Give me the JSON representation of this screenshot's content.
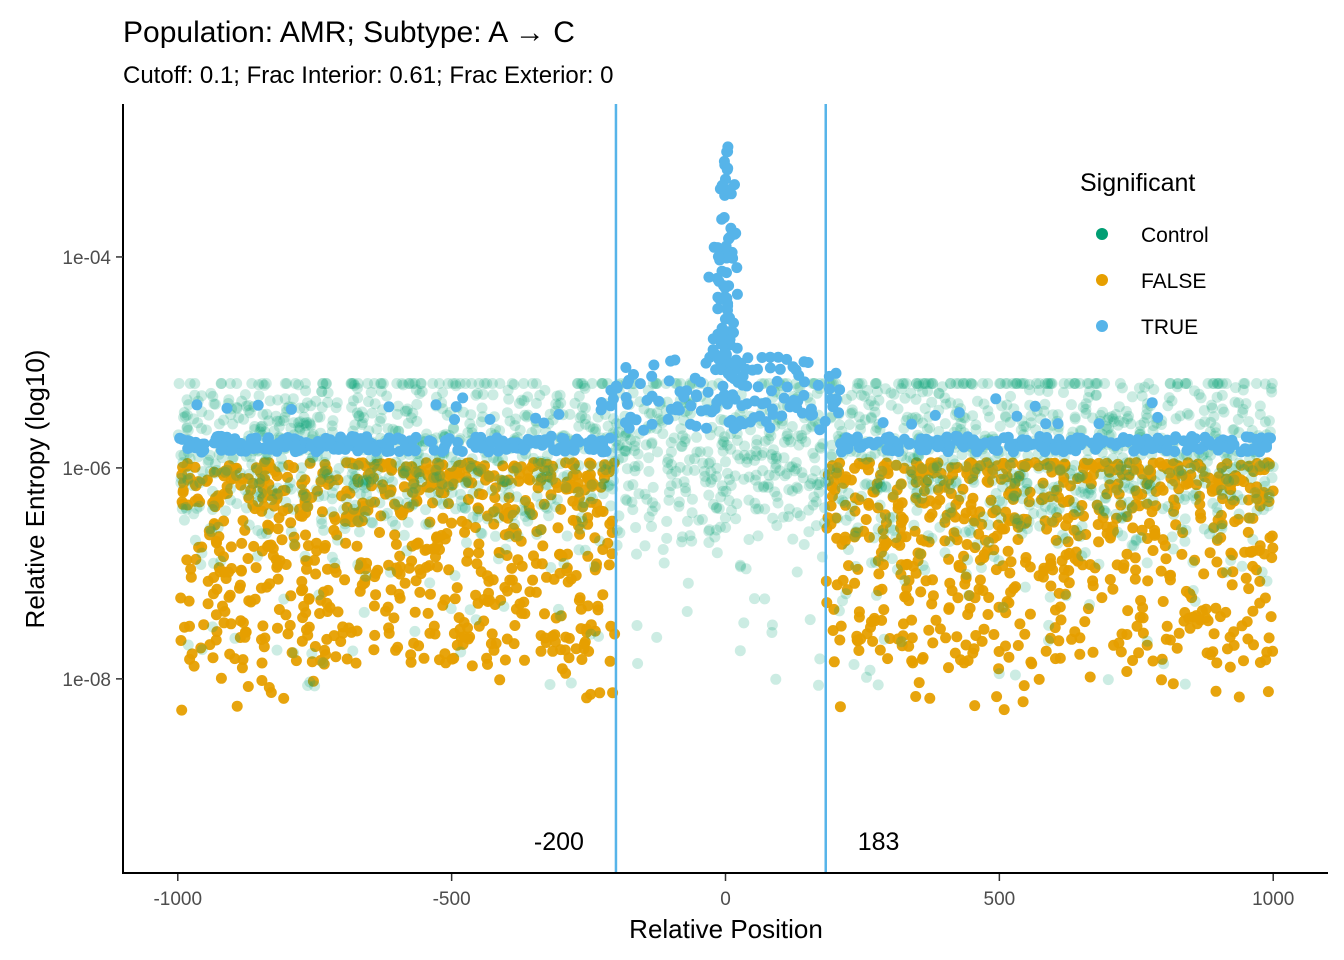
{
  "chart_data": {
    "type": "scatter",
    "title": "Population: AMR; Subtype: A → C",
    "subtitle": "Cutoff: 0.1; Frac Interior: 0.61; Frac Exterior: 0",
    "xlabel": "Relative Position",
    "ylabel": "Relative Entropy (log10)",
    "xlim": [
      -1100,
      1100
    ],
    "ylim_log10": [
      -9.85,
      -2.55
    ],
    "y_scale": "log10",
    "x_ticks": [
      -1000,
      -500,
      0,
      500,
      1000
    ],
    "x_tick_labels": [
      "-1000",
      "-500",
      "0",
      "500",
      "1000"
    ],
    "y_ticks_log10": [
      -8,
      -6,
      -4
    ],
    "y_tick_labels": [
      "1e-08",
      "1e-06",
      "1e-04"
    ],
    "grid": false,
    "legend": {
      "title": "Significant",
      "position": "top-right",
      "entries": [
        {
          "label": "Control",
          "color": "#009E73"
        },
        {
          "label": "FALSE",
          "color": "#E69F00"
        },
        {
          "label": "TRUE",
          "color": "#56B4E9"
        }
      ]
    },
    "vlines": [
      {
        "x": -200,
        "label": "-200",
        "color": "#56B4E9"
      },
      {
        "x": 183,
        "label": "183",
        "color": "#56B4E9"
      }
    ],
    "series": [
      {
        "name": "Control",
        "color": "#009E73",
        "alpha": 0.2,
        "n": 2000,
        "x_range": [
          -1000,
          1000
        ],
        "log10_center": -5.85,
        "log10_spread": 0.5
      },
      {
        "name": "FALSE",
        "color": "#E69F00",
        "alpha": 0.95,
        "n": 1450,
        "x_ranges": [
          [
            -1000,
            -200
          ],
          [
            183,
            1000
          ]
        ],
        "log10_range": [
          -8.4,
          -5.9
        ]
      },
      {
        "name": "TRUE",
        "color": "#56B4E9",
        "alpha": 1.0,
        "n": 700,
        "peak_x": 0,
        "peak_log10": -2.7,
        "x_range": [
          -1000,
          1000
        ]
      }
    ]
  }
}
